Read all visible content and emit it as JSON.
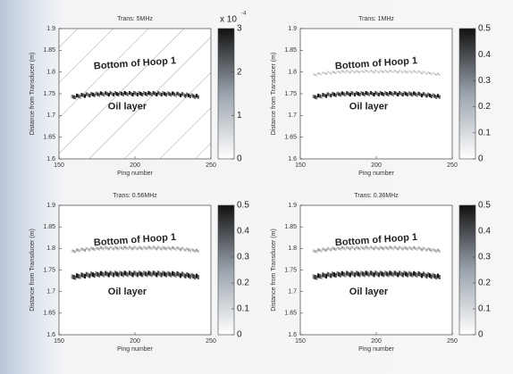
{
  "chart_data": [
    {
      "type": "image",
      "title": "Trans: 5MHz",
      "xlabel": "Ping number",
      "ylabel": "Distance from Transducer (m)",
      "xlim": [
        150,
        250
      ],
      "xticks": [
        150,
        200,
        250
      ],
      "ylim": [
        1.6,
        1.9
      ],
      "yticks": [
        1.6,
        1.65,
        1.7,
        1.75,
        1.8,
        1.85,
        1.9
      ],
      "clim": [
        0,
        3
      ],
      "cticks": [
        0,
        1,
        2,
        3
      ],
      "colorbar_exponent": "x 10",
      "colorbar_power": "-4",
      "annotations": [
        "Bottom of Hoop 1",
        "Oil layer"
      ]
    },
    {
      "type": "image",
      "title": "Trans: 1MHz",
      "xlabel": "Ping number",
      "ylabel": "Distance from Transducer (m)",
      "xlim": [
        150,
        250
      ],
      "xticks": [
        150,
        200,
        250
      ],
      "ylim": [
        1.6,
        1.9
      ],
      "yticks": [
        1.6,
        1.65,
        1.7,
        1.75,
        1.8,
        1.85,
        1.9
      ],
      "clim": [
        0,
        0.5
      ],
      "cticks": [
        0,
        0.1,
        0.2,
        0.3,
        0.4,
        0.5
      ],
      "annotations": [
        "Bottom of Hoop 1",
        "Oil layer"
      ]
    },
    {
      "type": "image",
      "title": "Trans: 0.56MHz",
      "xlabel": "Ping number",
      "ylabel": "Distance from Transducer (m)",
      "xlim": [
        150,
        250
      ],
      "xticks": [
        150,
        200,
        250
      ],
      "ylim": [
        1.6,
        1.9
      ],
      "yticks": [
        1.6,
        1.65,
        1.7,
        1.75,
        1.8,
        1.85,
        1.9
      ],
      "clim": [
        0,
        0.5
      ],
      "cticks": [
        0,
        0.1,
        0.2,
        0.3,
        0.4,
        0.5
      ],
      "annotations": [
        "Bottom of Hoop 1",
        "Oil layer"
      ]
    },
    {
      "type": "image",
      "title": "Trans: 0.36MHz",
      "xlabel": "Ping number",
      "ylabel": "Distance from Transducer (m)",
      "xlim": [
        150,
        250
      ],
      "xticks": [
        150,
        200,
        250
      ],
      "ylim": [
        1.6,
        1.9
      ],
      "yticks": [
        1.6,
        1.65,
        1.7,
        1.75,
        1.8,
        1.85,
        1.9
      ],
      "clim": [
        0,
        0.5
      ],
      "cticks": [
        0,
        0.1,
        0.2,
        0.3,
        0.4,
        0.5
      ],
      "annotations": [
        "Bottom of Hoop 1",
        "Oil layer"
      ]
    }
  ]
}
